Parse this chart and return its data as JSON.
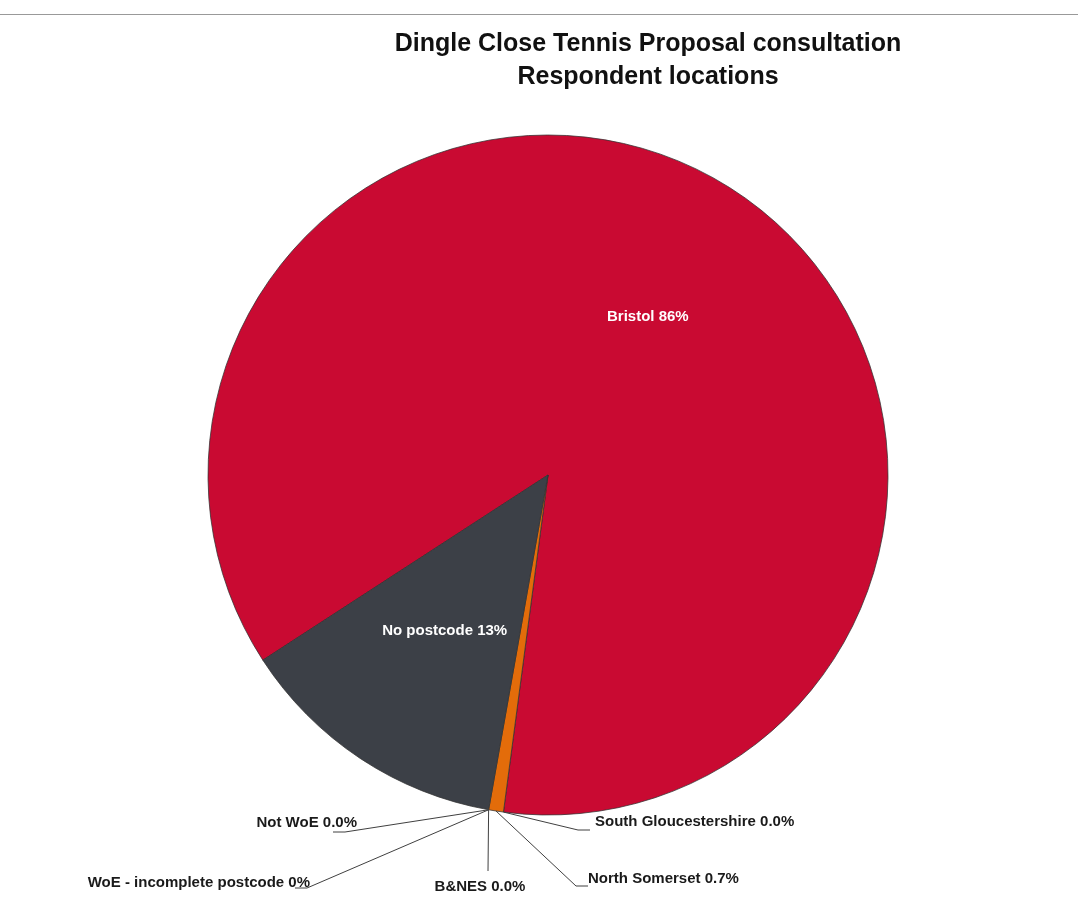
{
  "chart_data": {
    "type": "pie",
    "title": "Dingle Close Tennis Proposal consultation",
    "subtitle": "Respondent locations",
    "categories": [
      "Bristol",
      "South Gloucestershire",
      "North Somerset",
      "B&NES",
      "WoE - incomplete postcode",
      "Not WoE",
      "No postcode"
    ],
    "values": [
      86,
      0,
      0.7,
      0,
      0,
      0,
      13
    ],
    "value_labels": [
      "86%",
      "0.0%",
      "0.7%",
      "0.0%",
      "0%",
      "0.0%",
      "13%"
    ],
    "colors": [
      "#c90a32",
      "#7f7f7f",
      "#e36c0a",
      "#a6a6a6",
      "#d9d9d9",
      "#595959",
      "#3c4047"
    ],
    "legend": false
  }
}
